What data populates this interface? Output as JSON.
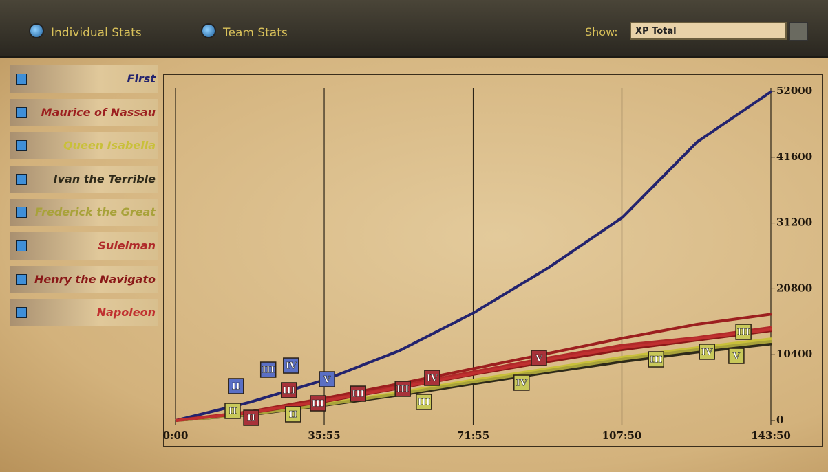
{
  "ui": {
    "tabs": [
      "Individual Stats",
      "Team Stats"
    ],
    "show_label": "Show:",
    "show_value": "XP Total"
  },
  "chart_data": {
    "type": "line",
    "x": [
      0,
      18,
      36,
      54,
      72,
      90,
      108,
      126,
      144
    ],
    "xlim": [
      0,
      143.83
    ],
    "ylim": [
      0,
      52000
    ],
    "xticks": [
      {
        "value": 0,
        "label": "0:00"
      },
      {
        "value": 35.92,
        "label": "35:55"
      },
      {
        "value": 71.92,
        "label": "71:55"
      },
      {
        "value": 107.83,
        "label": "107:50"
      },
      {
        "value": 143.83,
        "label": "143:50"
      }
    ],
    "yticks": [
      0,
      10400,
      20800,
      31200,
      41600,
      52000
    ],
    "grid": true,
    "series": [
      {
        "name": "First",
        "color": "#23236e",
        "values": [
          0,
          2900,
          6400,
          11000,
          17000,
          24100,
          32100,
          44000,
          52000
        ]
      },
      {
        "name": "Maurice of Nassau",
        "color": "#9c1f1f",
        "values": [
          0,
          1400,
          3500,
          5800,
          8200,
          10600,
          13000,
          15200,
          16800
        ]
      },
      {
        "name": "Queen Isabella",
        "color": "#c9c03a",
        "values": [
          0,
          1000,
          2600,
          4400,
          6400,
          8200,
          10000,
          11500,
          12900
        ]
      },
      {
        "name": "Ivan the Terrible",
        "color": "#2e2a1a",
        "values": [
          0,
          900,
          2400,
          4000,
          5800,
          7600,
          9300,
          10800,
          12100
        ]
      },
      {
        "name": "Frederick the Great",
        "color": "#a8a23a",
        "values": [
          0,
          950,
          2500,
          4200,
          6100,
          7900,
          9700,
          11200,
          12500
        ]
      },
      {
        "name": "Suleiman",
        "color": "#b02a2a",
        "values": [
          0,
          1300,
          3200,
          5400,
          7700,
          9900,
          11900,
          13100,
          14700
        ]
      },
      {
        "name": "Henry the Navigato",
        "color": "#8a1818",
        "values": [
          0,
          1200,
          3000,
          5100,
          7300,
          9300,
          11200,
          12700,
          14200
        ]
      },
      {
        "name": "Napoleon",
        "color": "#c03030",
        "values": [
          0,
          1250,
          3100,
          5200,
          7400,
          9600,
          11500,
          12900,
          14400
        ]
      }
    ],
    "annotations": [
      {
        "x": 14.6,
        "y": 5430,
        "label": "II",
        "color": "#5a6fc4"
      },
      {
        "x": 22.4,
        "y": 8030,
        "label": "III",
        "color": "#5a6fc4"
      },
      {
        "x": 27.9,
        "y": 8680,
        "label": "IV",
        "color": "#5a6fc4"
      },
      {
        "x": 36.6,
        "y": 6510,
        "label": "V",
        "color": "#5a6fc4"
      },
      {
        "x": 13.8,
        "y": 1520,
        "label": "II",
        "color": "#c8c85a"
      },
      {
        "x": 18.3,
        "y": 430,
        "label": "II",
        "color": "#a8323a"
      },
      {
        "x": 28.4,
        "y": 980,
        "label": "II",
        "color": "#c8c85a"
      },
      {
        "x": 27.4,
        "y": 4780,
        "label": "III",
        "color": "#a8323a"
      },
      {
        "x": 34.4,
        "y": 2710,
        "label": "III",
        "color": "#a8323a"
      },
      {
        "x": 44.1,
        "y": 4230,
        "label": "III",
        "color": "#a8323a"
      },
      {
        "x": 54.9,
        "y": 4990,
        "label": "III",
        "color": "#a8323a"
      },
      {
        "x": 60.0,
        "y": 2930,
        "label": "III",
        "color": "#c8c85a"
      },
      {
        "x": 62.0,
        "y": 6730,
        "label": "IV",
        "color": "#a8323a"
      },
      {
        "x": 83.6,
        "y": 5970,
        "label": "IV",
        "color": "#c8c85a"
      },
      {
        "x": 87.8,
        "y": 9880,
        "label": "V",
        "color": "#a8323a"
      },
      {
        "x": 116.1,
        "y": 9660,
        "label": "III",
        "color": "#c8c85a"
      },
      {
        "x": 128.4,
        "y": 10860,
        "label": "IV",
        "color": "#c8c85a"
      },
      {
        "x": 135.5,
        "y": 10200,
        "label": "V",
        "color": "#c8c85a"
      },
      {
        "x": 137.2,
        "y": 14000,
        "label": "III",
        "color": "#c8c85a"
      }
    ]
  }
}
